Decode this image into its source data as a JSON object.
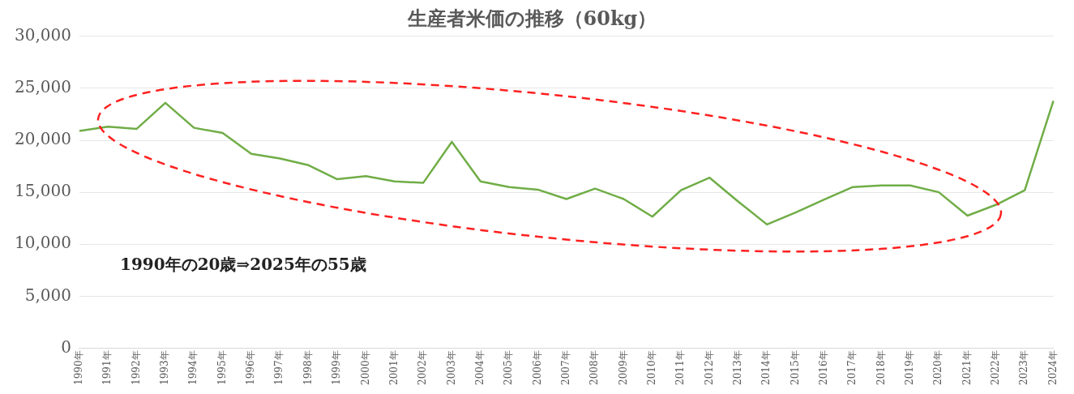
{
  "chart_data": {
    "type": "line",
    "title": "生産者米価の推移（60kg）",
    "categories": [
      "1990年",
      "1991年",
      "1992年",
      "1993年",
      "1994年",
      "1995年",
      "1996年",
      "1997年",
      "1998年",
      "1999年",
      "2000年",
      "2001年",
      "2002年",
      "2003年",
      "2004年",
      "2005年",
      "2006年",
      "2007年",
      "2008年",
      "2009年",
      "2010年",
      "2011年",
      "2012年",
      "2013年",
      "2014年",
      "2015年",
      "2016年",
      "2017年",
      "2018年",
      "2019年",
      "2020年",
      "2021年",
      "2022年",
      "2023年",
      "2024年"
    ],
    "series": [
      {
        "color": "#70ad47",
        "values": [
          20900,
          21300,
          21100,
          23600,
          21200,
          20700,
          18700,
          18250,
          17600,
          16250,
          16550,
          16050,
          15900,
          19850,
          16050,
          15500,
          15250,
          14350,
          15350,
          14350,
          12650,
          15200,
          16400,
          14100,
          11900,
          13050,
          14300,
          15500,
          15650,
          15650,
          15000,
          12750,
          13800,
          15200,
          23800
        ]
      }
    ],
    "ylim": [
      0,
      30000
    ],
    "yticks": [
      0,
      {
        "value": 5000,
        "label": "5,000"
      },
      {
        "value": 10000,
        "label": "10,000"
      },
      {
        "value": 15000,
        "label": "15,000"
      },
      {
        "value": 20000,
        "label": "20,000"
      },
      {
        "value": 25000,
        "label": "25,000"
      },
      {
        "value": 30000,
        "label": "30,000"
      }
    ],
    "grid": "y",
    "legend": false,
    "marker": "none",
    "line_style": "solid",
    "annotations": [
      "1990年の20歳⇒2025年の55歳"
    ]
  }
}
